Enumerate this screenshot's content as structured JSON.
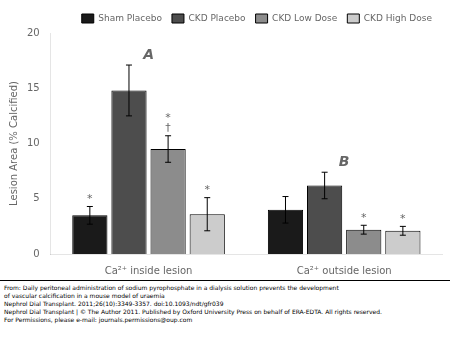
{
  "chart_data": {
    "type": "bar",
    "categories": [
      "Ca²⁺ inside lesion",
      "Ca²⁺ outside lesion"
    ],
    "series": [
      {
        "name": "Sham Placebo",
        "color": "#1a1a1a",
        "values": [
          3.5,
          4.0
        ],
        "errors": [
          0.8,
          1.2
        ]
      },
      {
        "name": "CKD Placebo",
        "color": "#4d4d4d",
        "values": [
          14.8,
          6.2
        ],
        "errors": [
          2.3,
          1.2
        ]
      },
      {
        "name": "CKD Low Dose",
        "color": "#8c8c8c",
        "values": [
          9.5,
          2.2
        ],
        "errors": [
          1.2,
          0.4
        ]
      },
      {
        "name": "CKD High Dose",
        "color": "#cccccc",
        "values": [
          3.6,
          2.1
        ],
        "errors": [
          1.5,
          0.4
        ]
      }
    ],
    "ylabel": "Lesion Area (% Calcified)",
    "ylim": [
      0,
      20
    ],
    "yticks": [
      0,
      5,
      10,
      15,
      20
    ],
    "grid": false,
    "legend": "upper right",
    "annotations": [
      {
        "text": "*",
        "category": "Ca²⁺ inside lesion",
        "series": "Sham Placebo"
      },
      {
        "text": "†",
        "category": "Ca²⁺ inside lesion",
        "series": "CKD Low Dose"
      },
      {
        "text": "*",
        "category": "Ca²⁺ inside lesion",
        "series": "CKD Low Dose"
      },
      {
        "text": "*",
        "category": "Ca²⁺ inside lesion",
        "series": "CKD High Dose"
      },
      {
        "text": "*",
        "category": "Ca²⁺ outside lesion",
        "series": "CKD Low Dose"
      },
      {
        "text": "*",
        "category": "Ca²⁺ outside lesion",
        "series": "CKD High Dose"
      },
      {
        "text": "A",
        "category": "Ca²⁺ inside lesion"
      },
      {
        "text": "B",
        "category": "Ca²⁺ outside lesion"
      }
    ],
    "caption": [
      "From: Daily peritoneal administration of sodium pyrophosphate in a dialysis solution prevents the development",
      "of vascular calcification in a mouse model of uraemia",
      "Nephrol Dial Transplant. 2011;26(10):3349-3357. doi:10.1093/ndt/gfr039",
      "Nephrol Dial Transplant | © The Author 2011. Published by Oxford University Press on behalf of ERA-EDTA. All rights reserved.",
      "For Permissions, please e-mail: journals.permissions@oup.com"
    ]
  }
}
